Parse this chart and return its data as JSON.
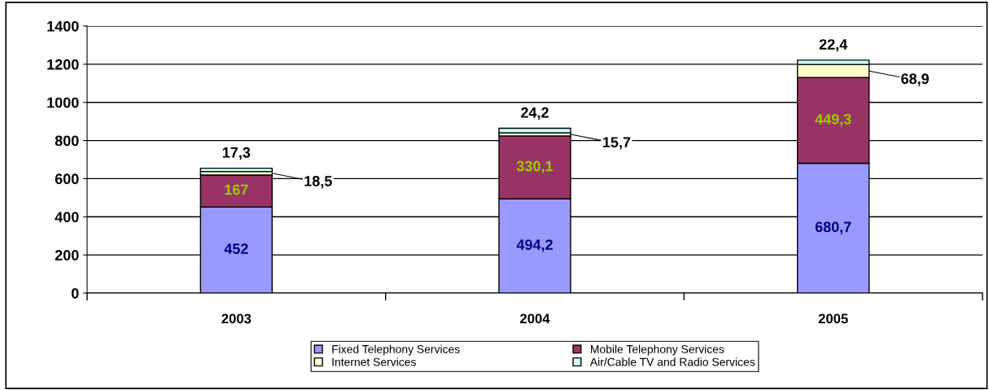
{
  "chart_data": {
    "type": "bar",
    "stacked": true,
    "categories": [
      "2003",
      "2004",
      "2005"
    ],
    "series": [
      {
        "name": "Fixed Telephony Services",
        "color": "#9999ff",
        "values": [
          452,
          494.2,
          680.7
        ],
        "value_labels": [
          "452",
          "494,2",
          "680,7"
        ]
      },
      {
        "name": "Mobile Telephony Services",
        "color": "#993366",
        "values": [
          167,
          330.1,
          449.3
        ],
        "value_labels": [
          "167",
          "330,1",
          "449,3"
        ]
      },
      {
        "name": "Internet Services",
        "color": "#ffffcc",
        "values": [
          18.5,
          15.7,
          68.9
        ],
        "value_labels": [
          "18,5",
          "15,7",
          "68,9"
        ]
      },
      {
        "name": "Air/Cable TV and Radio Services",
        "color": "#ccffff",
        "values": [
          17.3,
          24.2,
          22.4
        ],
        "value_labels": [
          "17,3",
          "24,2",
          "22,4"
        ]
      }
    ],
    "ylim": [
      0,
      1400
    ],
    "yticks": [
      0,
      200,
      400,
      600,
      800,
      1000,
      1200,
      1400
    ],
    "grid": "y",
    "legend": "bottom"
  }
}
